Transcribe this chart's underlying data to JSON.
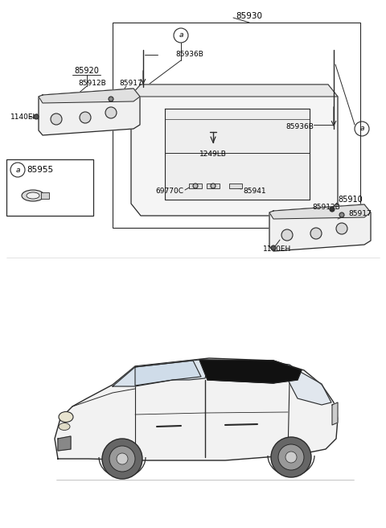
{
  "bg_color": "#ffffff",
  "line_color": "#2a2a2a",
  "text_color": "#000000",
  "parts": {
    "main_label": "85930",
    "left_shelf": "85920",
    "left_clip": "85912B",
    "left_rod": "85917",
    "left_bolt": "1140EH",
    "spring_left": "85936B",
    "spring_right": "85936B",
    "center_bolt": "1249LB",
    "clip1": "69770C",
    "clip2": "85941",
    "right_shelf": "85910",
    "right_clip": "85912B",
    "right_rod": "85917",
    "right_bolt": "1140EH",
    "callout_part": "85955"
  }
}
